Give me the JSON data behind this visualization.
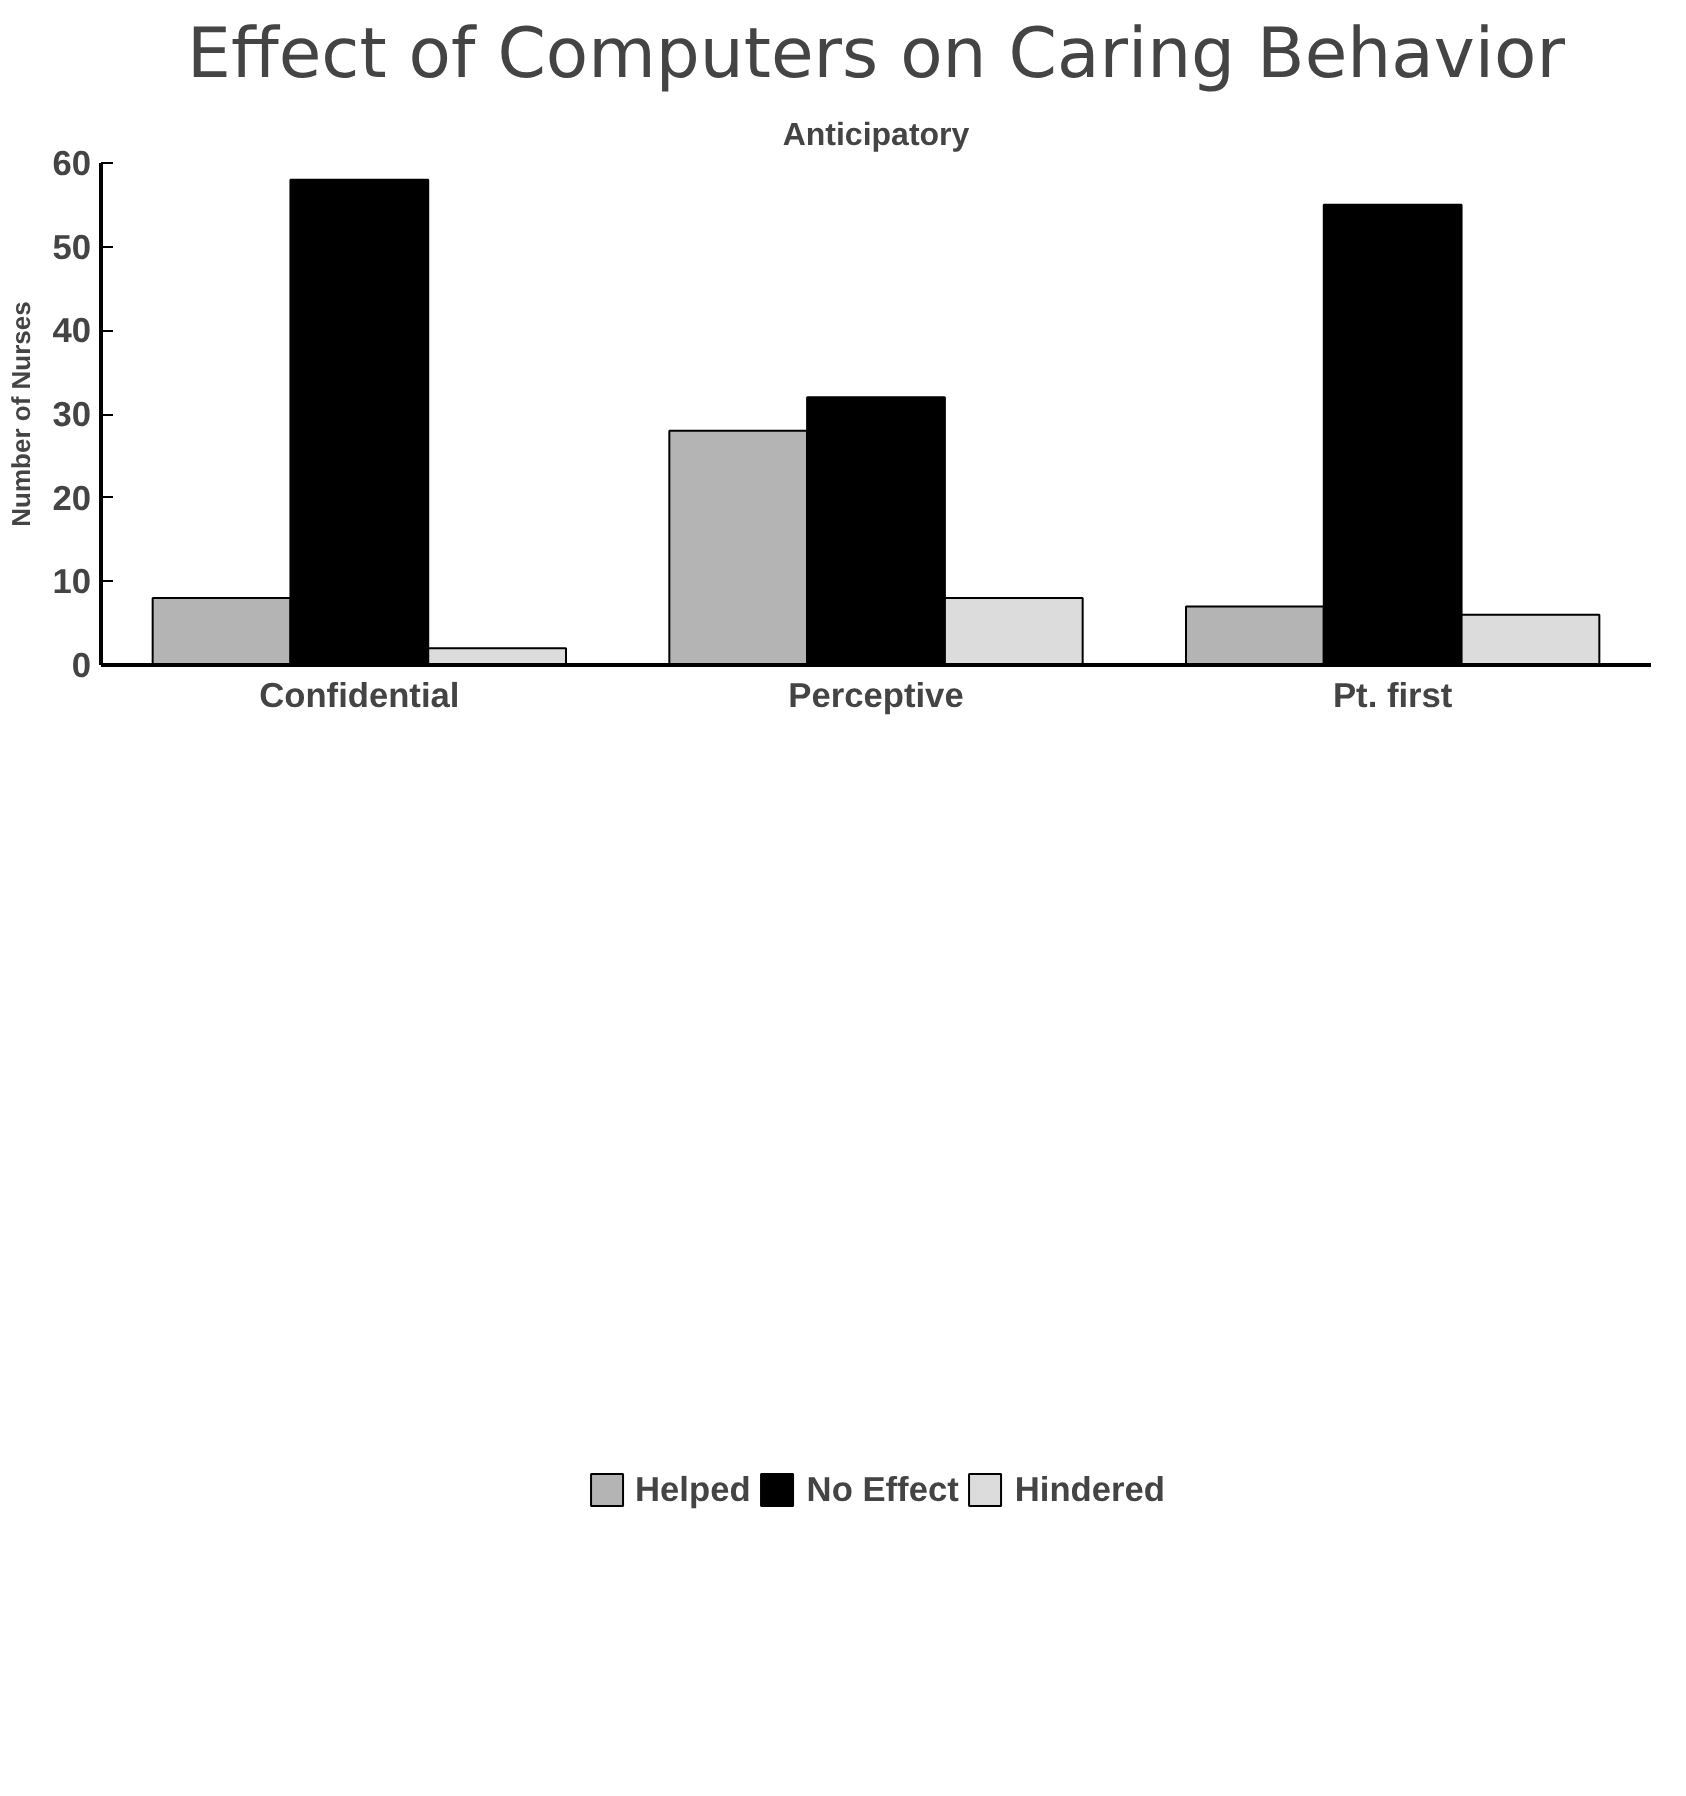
{
  "chart_data": {
    "type": "bar",
    "title": "Effect of Computers on Caring Behavior",
    "subtitle": "Anticipatory",
    "ylabel": "Number of Nurses",
    "categories": [
      "Confidential",
      "Perceptive",
      "Pt. first"
    ],
    "series": [
      {
        "name": "Helped",
        "color": "#b4b4b4",
        "values": [
          8,
          28,
          7
        ]
      },
      {
        "name": "No Effect",
        "color": "#000000",
        "values": [
          58,
          32,
          55
        ]
      },
      {
        "name": "Hindered",
        "color": "#dcdcdc",
        "values": [
          2,
          8,
          6
        ]
      }
    ],
    "ylim": [
      0,
      60
    ],
    "yticks": [
      0,
      10,
      20,
      30,
      40,
      50,
      60
    ],
    "grid": false,
    "legend": "bottom"
  }
}
